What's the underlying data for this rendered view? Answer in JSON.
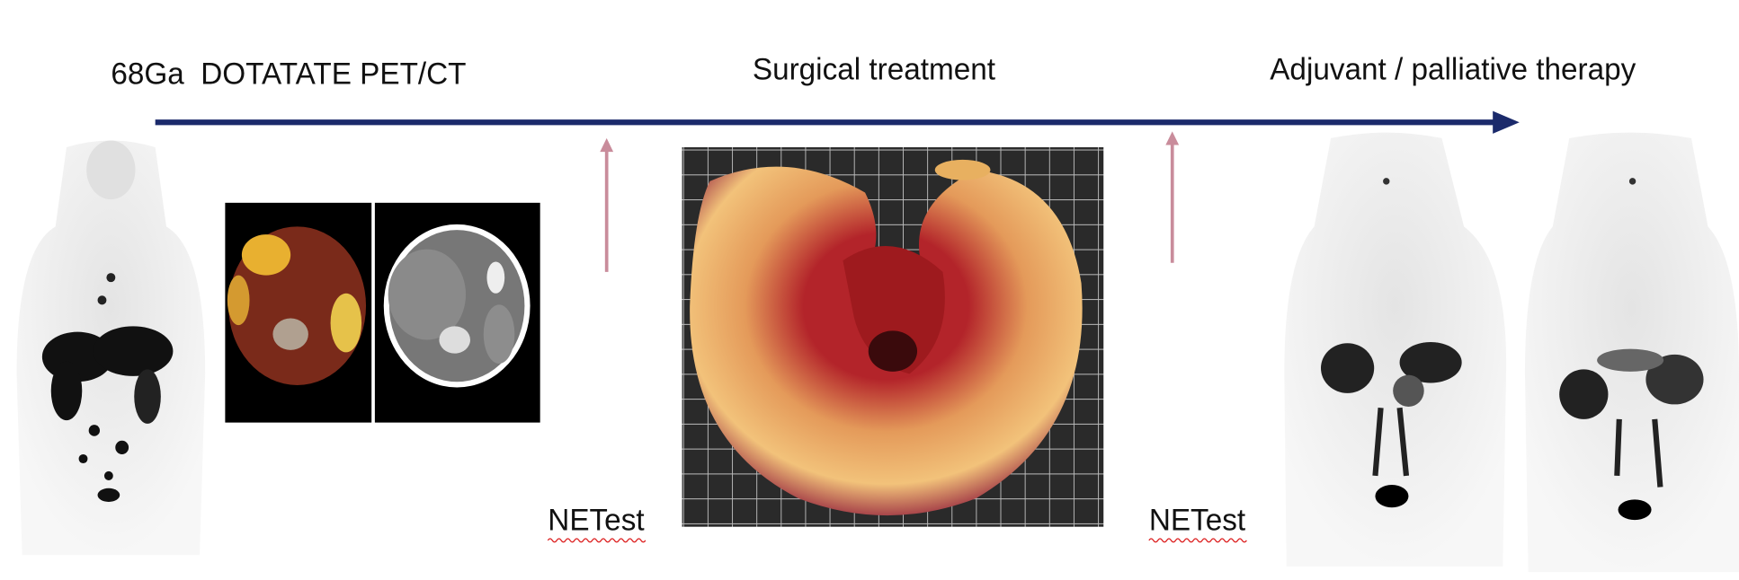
{
  "timeline": {
    "steps": [
      "68Ga  DOTATATE PET/CT",
      "Surgical treatment",
      "Adjuvant / palliative therapy"
    ]
  },
  "markers": {
    "labels": [
      "NETest",
      "NETest"
    ]
  }
}
